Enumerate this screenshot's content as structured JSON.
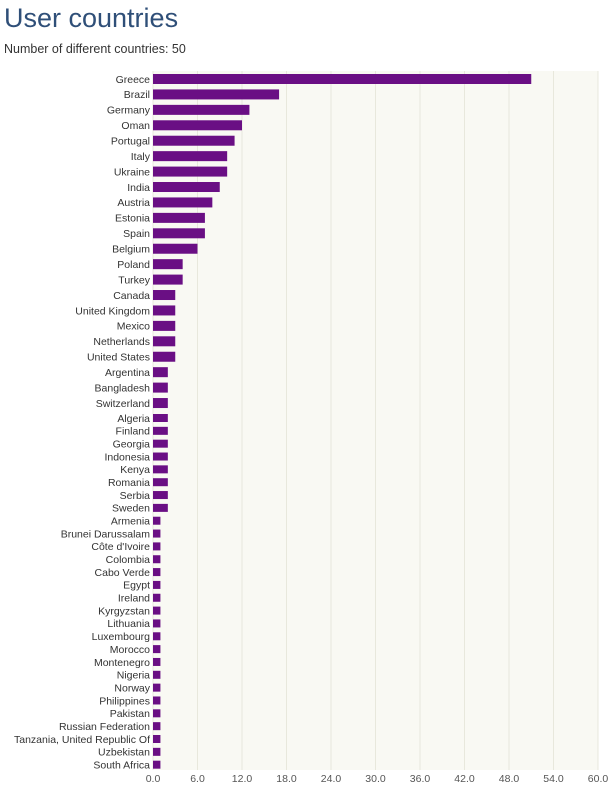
{
  "page": {
    "title": "User countries",
    "subtitle": "Number of different countries: 50"
  },
  "colors": {
    "bar": "#6a0f84",
    "plot_background": "#f9f9f3",
    "grid": "#e8e8dc"
  },
  "chart_data": {
    "type": "bar",
    "orientation": "horizontal",
    "title": "User countries",
    "xlim": [
      0,
      60
    ],
    "xticks": [
      "0.0",
      "6.0",
      "12.0",
      "18.0",
      "24.0",
      "30.0",
      "36.0",
      "42.0",
      "48.0",
      "54.0",
      "60.0"
    ],
    "grid": true,
    "categories": [
      "Greece",
      "Brazil",
      "Germany",
      "Oman",
      "Portugal",
      "Italy",
      "Ukraine",
      "India",
      "Austria",
      "Estonia",
      "Spain",
      "Belgium",
      "Poland",
      "Turkey",
      "Canada",
      "United Kingdom",
      "Mexico",
      "Netherlands",
      "United States",
      "Argentina",
      "Bangladesh",
      "Switzerland",
      "Algeria",
      "Finland",
      "Georgia",
      "Indonesia",
      "Kenya",
      "Romania",
      "Serbia",
      "Sweden",
      "Armenia",
      "Brunei Darussalam",
      "Côte d'Ivoire",
      "Colombia",
      "Cabo Verde",
      "Egypt",
      "Ireland",
      "Kyrgyzstan",
      "Lithuania",
      "Luxembourg",
      "Morocco",
      "Montenegro",
      "Nigeria",
      "Norway",
      "Philippines",
      "Pakistan",
      "Russian Federation",
      "Tanzania, United Republic Of",
      "Uzbekistan",
      "South Africa"
    ],
    "values": [
      51,
      17,
      13,
      12,
      11,
      10,
      10,
      9,
      8,
      7,
      7,
      6,
      4,
      4,
      3,
      3,
      3,
      3,
      3,
      2,
      2,
      2,
      2,
      2,
      2,
      2,
      2,
      2,
      2,
      2,
      1,
      1,
      1,
      1,
      1,
      1,
      1,
      1,
      1,
      1,
      1,
      1,
      1,
      1,
      1,
      1,
      1,
      1,
      1,
      1
    ]
  }
}
